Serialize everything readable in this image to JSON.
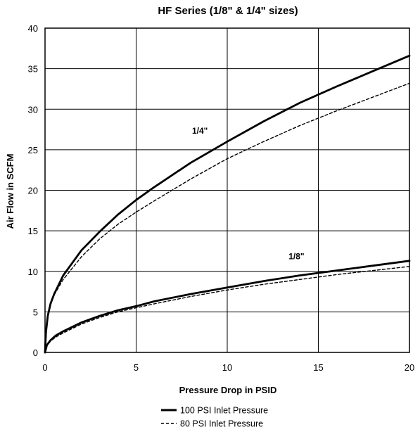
{
  "chart_data": {
    "type": "line",
    "title": "HF Series (1/8\" & 1/4\" sizes)",
    "xlabel": "Pressure Drop in PSID",
    "ylabel": "Air Flow in SCFM",
    "xlim": [
      0,
      20
    ],
    "ylim": [
      0,
      40
    ],
    "xticks": [
      0,
      5,
      10,
      15,
      20
    ],
    "yticks": [
      0,
      5,
      10,
      15,
      20,
      25,
      30,
      35,
      40
    ],
    "grid": true,
    "legend": {
      "position": "bottom-center",
      "entries": [
        {
          "label": "100 PSI Inlet Pressure",
          "style": "solid"
        },
        {
          "label": "80 PSI Inlet Pressure",
          "style": "dashed"
        }
      ]
    },
    "annotations": [
      {
        "text": "1/4\"",
        "x": 8.5,
        "y": 27
      },
      {
        "text": "1/8\"",
        "x": 13.8,
        "y": 11.5
      }
    ],
    "series": [
      {
        "name": "1/4\" 100 PSI Inlet Pressure",
        "group": "1/4\"",
        "style": "solid",
        "x": [
          0,
          0.05,
          0.15,
          0.3,
          0.5,
          1,
          2,
          3,
          4,
          5,
          6,
          8,
          10,
          12,
          14,
          16,
          18,
          20
        ],
        "y": [
          0,
          2.5,
          4.5,
          6.0,
          7.2,
          9.5,
          12.6,
          14.9,
          17.0,
          18.8,
          20.4,
          23.4,
          26.0,
          28.5,
          30.8,
          32.8,
          34.7,
          36.6
        ]
      },
      {
        "name": "1/4\" 80 PSI Inlet Pressure",
        "group": "1/4\"",
        "style": "dashed",
        "x": [
          0,
          0.05,
          0.15,
          0.3,
          0.5,
          1,
          2,
          3,
          4,
          5,
          6,
          8,
          10,
          12,
          14,
          16,
          18,
          20
        ],
        "y": [
          0,
          2.4,
          4.4,
          5.9,
          7.1,
          9.0,
          11.8,
          14.0,
          15.8,
          17.3,
          18.7,
          21.4,
          23.9,
          26.0,
          28.0,
          29.8,
          31.5,
          33.2
        ]
      },
      {
        "name": "1/8\" 100 PSI Inlet Pressure",
        "group": "1/8\"",
        "style": "solid",
        "x": [
          0,
          0.1,
          0.3,
          0.6,
          1,
          2,
          3,
          4,
          5,
          6,
          8,
          10,
          12,
          14,
          16,
          18,
          20
        ],
        "y": [
          0,
          0.9,
          1.5,
          2.1,
          2.6,
          3.7,
          4.5,
          5.2,
          5.7,
          6.3,
          7.2,
          8.0,
          8.8,
          9.5,
          10.1,
          10.7,
          11.3
        ]
      },
      {
        "name": "1/8\" 80 PSI Inlet Pressure",
        "group": "1/8\"",
        "style": "dashed",
        "x": [
          0,
          0.1,
          0.3,
          0.6,
          1,
          2,
          3,
          4,
          5,
          6,
          8,
          10,
          12,
          14,
          16,
          18,
          20
        ],
        "y": [
          0,
          0.8,
          1.4,
          1.9,
          2.4,
          3.5,
          4.3,
          5.0,
          5.5,
          6.0,
          6.9,
          7.7,
          8.4,
          9.0,
          9.6,
          10.1,
          10.6
        ]
      }
    ]
  }
}
